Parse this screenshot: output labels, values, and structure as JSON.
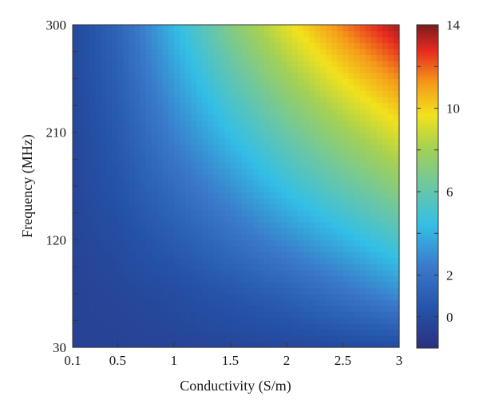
{
  "chart_data": {
    "type": "heatmap",
    "title": "",
    "xlabel": "Conductivity (S/m)",
    "ylabel": "Frequency (MHz)",
    "xlim": [
      0.1,
      3
    ],
    "ylim": [
      30,
      300
    ],
    "x_ticks": [
      0.1,
      0.5,
      1,
      1.5,
      2,
      2.5,
      3
    ],
    "x_tick_labels": [
      "0.1",
      "0.5",
      "1",
      "1.5",
      "2",
      "2.5",
      "3"
    ],
    "y_ticks": [
      30,
      120,
      210,
      300
    ],
    "y_tick_labels": [
      "30",
      "120",
      "210",
      "300"
    ],
    "colorbar": {
      "range": [
        -1.5,
        14
      ],
      "ticks": [
        0,
        2,
        6,
        10,
        14
      ],
      "tick_labels": [
        "0",
        "2",
        "6",
        "10",
        "14"
      ],
      "colormap": "jet"
    },
    "x": [
      0.1,
      0.5,
      1,
      1.5,
      2,
      2.5,
      3
    ],
    "y": [
      30,
      75,
      120,
      165,
      210,
      255,
      300
    ],
    "z": [
      [
        -0.5,
        -0.5,
        -0.4,
        -0.3,
        -0.2,
        -0.1,
        0.0
      ],
      [
        -0.5,
        -0.3,
        0.0,
        0.5,
        1.1,
        2.0,
        3.0
      ],
      [
        -0.4,
        0.0,
        0.8,
        1.8,
        2.9,
        4.0,
        5.2
      ],
      [
        -0.3,
        0.4,
        1.7,
        3.1,
        4.6,
        6.0,
        7.3
      ],
      [
        -0.3,
        0.7,
        2.6,
        4.4,
        6.2,
        7.8,
        9.3
      ],
      [
        -0.2,
        1.0,
        3.4,
        5.7,
        7.8,
        9.7,
        11.4
      ],
      [
        -0.2,
        1.3,
        4.2,
        7.0,
        9.4,
        11.6,
        13.6
      ]
    ]
  }
}
